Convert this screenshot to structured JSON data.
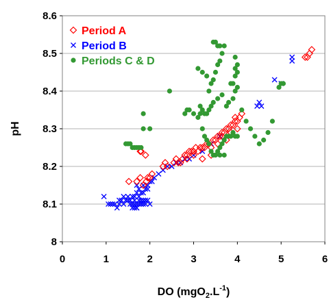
{
  "chart_data": {
    "type": "scatter",
    "xlabel": "DO (mgO2.L-1)",
    "xlabel_parts": {
      "main": "DO (mgO",
      "sub": "2",
      "mid": ".L",
      "sup": "-1",
      "end": ")"
    },
    "ylabel": "pH",
    "xlim": [
      0,
      6
    ],
    "ylim": [
      8.0,
      8.6
    ],
    "xticks": [
      "0",
      "1",
      "2",
      "3",
      "4",
      "5",
      "6"
    ],
    "yticks": [
      "8",
      "8.1",
      "8.2",
      "8.3",
      "8.4",
      "8.5",
      "8.6"
    ],
    "grid": "horizontal",
    "legend_position": "top-left",
    "series": [
      {
        "name": "Period A",
        "marker": "diamond-open",
        "color": "#ff0000",
        "x": [
          1.52,
          1.7,
          1.78,
          1.85,
          1.92,
          1.95,
          2.0,
          2.05,
          1.8,
          1.9,
          2.3,
          2.35,
          2.4,
          2.55,
          2.6,
          2.65,
          2.7,
          2.75,
          2.8,
          2.85,
          2.9,
          2.95,
          3.0,
          3.05,
          3.1,
          3.15,
          3.2,
          3.25,
          3.3,
          3.35,
          3.4,
          3.45,
          3.5,
          3.55,
          3.6,
          3.65,
          3.7,
          3.75,
          3.8,
          3.85,
          3.9,
          3.95,
          4.0,
          4.05,
          4.1,
          3.4,
          3.55,
          3.65,
          3.75,
          3.85,
          3.95,
          4.0,
          3.2,
          3.0,
          2.85,
          1.78,
          5.55,
          5.6,
          5.65,
          5.7
        ],
        "y": [
          8.16,
          8.16,
          8.17,
          8.15,
          8.16,
          8.17,
          8.17,
          8.18,
          8.24,
          8.23,
          8.2,
          8.21,
          8.2,
          8.21,
          8.22,
          8.21,
          8.21,
          8.22,
          8.23,
          8.23,
          8.24,
          8.24,
          8.24,
          8.25,
          8.24,
          8.25,
          8.25,
          8.25,
          8.26,
          8.26,
          8.25,
          8.27,
          8.27,
          8.28,
          8.28,
          8.29,
          8.29,
          8.3,
          8.3,
          8.31,
          8.31,
          8.32,
          8.32,
          8.33,
          8.34,
          8.23,
          8.26,
          8.28,
          8.27,
          8.29,
          8.33,
          8.3,
          8.22,
          8.23,
          8.22,
          8.24,
          8.49,
          8.49,
          8.5,
          8.51
        ]
      },
      {
        "name": "Period B",
        "marker": "cross",
        "color": "#0000ff",
        "x": [
          0.95,
          1.05,
          1.1,
          1.15,
          1.2,
          1.25,
          1.3,
          1.35,
          1.4,
          1.45,
          1.5,
          1.55,
          1.6,
          1.65,
          1.7,
          1.75,
          1.8,
          1.85,
          1.9,
          1.95,
          2.0,
          1.5,
          1.55,
          1.6,
          1.65,
          1.7,
          1.75,
          1.8,
          1.85,
          1.9,
          1.95,
          1.6,
          1.65,
          1.7,
          1.75,
          1.8,
          1.85,
          1.9,
          1.7,
          1.75,
          1.85,
          1.95,
          2.05,
          2.1,
          2.2,
          2.3,
          2.4,
          2.5,
          2.6,
          2.7,
          2.8,
          2.9,
          3.0,
          3.2,
          3.4,
          3.6,
          4.45,
          4.5,
          4.55,
          4.85,
          5.0,
          5.25,
          5.25,
          1.3,
          1.4,
          1.65,
          1.7,
          1.8,
          2.0
        ],
        "y": [
          8.12,
          8.1,
          8.1,
          8.1,
          8.1,
          8.09,
          8.1,
          8.11,
          8.1,
          8.11,
          8.11,
          8.1,
          8.1,
          8.11,
          8.1,
          8.11,
          8.1,
          8.1,
          8.11,
          8.11,
          8.1,
          8.12,
          8.11,
          8.12,
          8.12,
          8.13,
          8.12,
          8.13,
          8.13,
          8.14,
          8.14,
          8.09,
          8.09,
          8.09,
          8.1,
          8.1,
          8.11,
          8.1,
          8.15,
          8.14,
          8.15,
          8.15,
          8.16,
          8.17,
          8.18,
          8.19,
          8.2,
          8.2,
          8.21,
          8.21,
          8.22,
          8.22,
          8.23,
          8.24,
          8.26,
          8.28,
          8.36,
          8.37,
          8.36,
          8.43,
          8.42,
          8.48,
          8.49,
          8.11,
          8.12,
          8.1,
          8.09,
          8.11,
          8.16
        ]
      },
      {
        "name": "Periods C & D",
        "marker": "circle-filled",
        "color": "#339933",
        "x": [
          1.45,
          1.5,
          1.55,
          1.6,
          1.65,
          1.7,
          1.75,
          1.8,
          1.85,
          2.0,
          2.45,
          2.8,
          2.85,
          2.9,
          3.0,
          3.1,
          3.15,
          3.2,
          3.25,
          3.3,
          3.35,
          3.4,
          3.45,
          3.5,
          3.55,
          3.6,
          3.65,
          3.7,
          3.75,
          3.8,
          3.85,
          3.9,
          3.95,
          4.0,
          3.4,
          3.45,
          3.5,
          3.55,
          3.6,
          3.65,
          3.7,
          3.75,
          3.8,
          3.9,
          3.95,
          4.0,
          3.85,
          3.9,
          3.95,
          4.0,
          3.95,
          4.0,
          3.95,
          3.5,
          3.45,
          3.55,
          3.6,
          3.15,
          3.2,
          3.25,
          3.3,
          3.35,
          3.4,
          3.45,
          3.55,
          3.65,
          4.2,
          4.3,
          4.4,
          4.5,
          4.6,
          4.7,
          4.8,
          4.95,
          5.0,
          5.05,
          1.85,
          3.1,
          3.2,
          3.7,
          3.6,
          4.1,
          3.3,
          3.35
        ],
        "y": [
          8.26,
          8.26,
          8.26,
          8.25,
          8.25,
          8.25,
          8.25,
          8.25,
          8.34,
          8.3,
          8.4,
          8.34,
          8.35,
          8.35,
          8.34,
          8.33,
          8.34,
          8.3,
          8.28,
          8.27,
          8.26,
          8.24,
          8.23,
          8.23,
          8.24,
          8.25,
          8.26,
          8.27,
          8.28,
          8.28,
          8.28,
          8.29,
          8.28,
          8.28,
          8.42,
          8.43,
          8.45,
          8.47,
          8.48,
          8.5,
          8.52,
          8.36,
          8.37,
          8.38,
          8.4,
          8.41,
          8.42,
          8.42,
          8.44,
          8.45,
          8.46,
          8.47,
          8.49,
          8.53,
          8.53,
          8.52,
          8.52,
          8.36,
          8.35,
          8.34,
          8.34,
          8.35,
          8.36,
          8.37,
          8.38,
          8.39,
          8.32,
          8.3,
          8.28,
          8.26,
          8.27,
          8.29,
          8.32,
          8.41,
          8.42,
          8.42,
          8.3,
          8.46,
          8.45,
          8.23,
          8.23,
          8.35,
          8.44,
          8.4
        ]
      }
    ]
  }
}
